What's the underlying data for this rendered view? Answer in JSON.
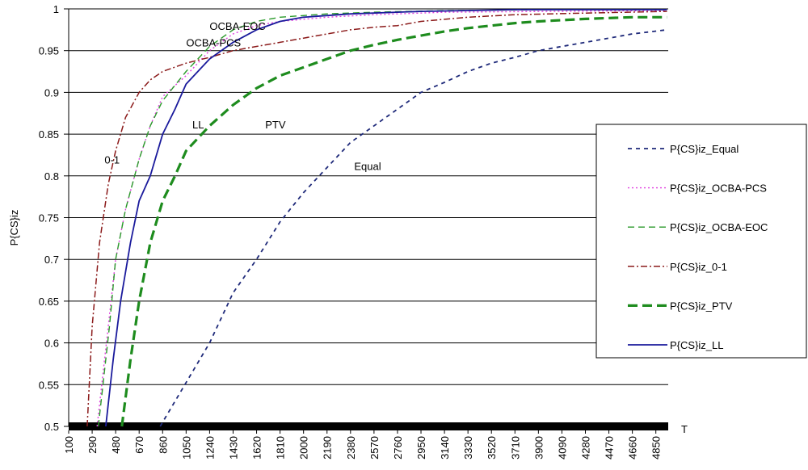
{
  "chart_data": {
    "type": "line",
    "title": "",
    "xlabel": "T",
    "ylabel": "P{CS}iz",
    "xlim": [
      100,
      4950
    ],
    "ylim": [
      0.5,
      1
    ],
    "x_ticks": [
      100,
      290,
      480,
      670,
      860,
      1050,
      1240,
      1430,
      1620,
      1810,
      2000,
      2190,
      2380,
      2570,
      2760,
      2950,
      3140,
      3330,
      3520,
      3710,
      3900,
      4090,
      4280,
      4470,
      4660,
      4850
    ],
    "y_ticks": [
      "0.5",
      "0.55",
      "0.6",
      "0.65",
      "0.7",
      "0.75",
      "0.8",
      "0.85",
      "0.9",
      "0.95",
      "1"
    ],
    "grid": "horizontal",
    "legend_position": "right",
    "series": [
      {
        "name": "P{CS}iz_Equal",
        "color": "#1f2a7a",
        "dash": "5,5",
        "width": 1.8,
        "points": [
          [
            840,
            0.5
          ],
          [
            1000,
            0.54
          ],
          [
            1240,
            0.6
          ],
          [
            1430,
            0.66
          ],
          [
            1620,
            0.7
          ],
          [
            1810,
            0.745
          ],
          [
            2000,
            0.78
          ],
          [
            2190,
            0.81
          ],
          [
            2380,
            0.84
          ],
          [
            2570,
            0.86
          ],
          [
            2760,
            0.88
          ],
          [
            2950,
            0.9
          ],
          [
            3140,
            0.912
          ],
          [
            3330,
            0.925
          ],
          [
            3520,
            0.935
          ],
          [
            3710,
            0.942
          ],
          [
            3900,
            0.95
          ],
          [
            4090,
            0.955
          ],
          [
            4280,
            0.96
          ],
          [
            4470,
            0.965
          ],
          [
            4660,
            0.97
          ],
          [
            4940,
            0.975
          ]
        ]
      },
      {
        "name": "P{CS}iz_OCBA-PCS",
        "color": "#e040e0",
        "dash": "2,3",
        "width": 1.4,
        "points": [
          [
            330,
            0.5
          ],
          [
            420,
            0.62
          ],
          [
            480,
            0.7
          ],
          [
            560,
            0.76
          ],
          [
            670,
            0.82
          ],
          [
            760,
            0.86
          ],
          [
            860,
            0.895
          ],
          [
            1050,
            0.92
          ],
          [
            1240,
            0.95
          ],
          [
            1430,
            0.97
          ],
          [
            1620,
            0.98
          ],
          [
            1810,
            0.985
          ],
          [
            2190,
            0.99
          ],
          [
            2570,
            0.993
          ],
          [
            3140,
            0.996
          ],
          [
            4000,
            0.997
          ],
          [
            4940,
            0.998
          ]
        ]
      },
      {
        "name": "P{CS}iz_OCBA-EOC",
        "color": "#2a9a2a",
        "dash": "8,5",
        "width": 1.4,
        "points": [
          [
            340,
            0.5
          ],
          [
            430,
            0.62
          ],
          [
            480,
            0.7
          ],
          [
            560,
            0.76
          ],
          [
            670,
            0.82
          ],
          [
            760,
            0.86
          ],
          [
            860,
            0.89
          ],
          [
            1050,
            0.925
          ],
          [
            1240,
            0.955
          ],
          [
            1430,
            0.975
          ],
          [
            1620,
            0.985
          ],
          [
            1810,
            0.99
          ],
          [
            2190,
            0.994
          ],
          [
            2570,
            0.996
          ],
          [
            3140,
            0.998
          ],
          [
            4000,
            0.999
          ],
          [
            4940,
            0.999
          ]
        ]
      },
      {
        "name": "P{CS}iz_0-1",
        "color": "#8b1a1a",
        "dash": "8,3,2,3",
        "width": 1.5,
        "points": [
          [
            250,
            0.5
          ],
          [
            290,
            0.62
          ],
          [
            350,
            0.72
          ],
          [
            420,
            0.79
          ],
          [
            480,
            0.83
          ],
          [
            560,
            0.87
          ],
          [
            670,
            0.9
          ],
          [
            760,
            0.915
          ],
          [
            860,
            0.925
          ],
          [
            1050,
            0.935
          ],
          [
            1240,
            0.942
          ],
          [
            1430,
            0.95
          ],
          [
            1620,
            0.955
          ],
          [
            1810,
            0.96
          ],
          [
            2000,
            0.965
          ],
          [
            2190,
            0.97
          ],
          [
            2380,
            0.975
          ],
          [
            2570,
            0.978
          ],
          [
            2760,
            0.98
          ],
          [
            2950,
            0.985
          ],
          [
            3330,
            0.99
          ],
          [
            3710,
            0.993
          ],
          [
            4280,
            0.995
          ],
          [
            4940,
            0.997
          ]
        ]
      },
      {
        "name": "P{CS}iz_PTV",
        "color": "#1e8c1e",
        "dash": "12,6",
        "width": 3.2,
        "points": [
          [
            530,
            0.5
          ],
          [
            600,
            0.58
          ],
          [
            670,
            0.65
          ],
          [
            760,
            0.72
          ],
          [
            860,
            0.77
          ],
          [
            960,
            0.8
          ],
          [
            1050,
            0.83
          ],
          [
            1240,
            0.86
          ],
          [
            1430,
            0.885
          ],
          [
            1620,
            0.905
          ],
          [
            1810,
            0.92
          ],
          [
            2000,
            0.93
          ],
          [
            2190,
            0.94
          ],
          [
            2380,
            0.95
          ],
          [
            2570,
            0.957
          ],
          [
            2760,
            0.963
          ],
          [
            2950,
            0.968
          ],
          [
            3140,
            0.973
          ],
          [
            3330,
            0.977
          ],
          [
            3520,
            0.98
          ],
          [
            3710,
            0.983
          ],
          [
            3900,
            0.985
          ],
          [
            4280,
            0.988
          ],
          [
            4660,
            0.99
          ],
          [
            4940,
            0.99
          ]
        ]
      },
      {
        "name": "P{CS}iz_LL",
        "color": "#1a1a9c",
        "dash": "",
        "width": 1.8,
        "points": [
          [
            400,
            0.5
          ],
          [
            460,
            0.58
          ],
          [
            520,
            0.65
          ],
          [
            600,
            0.72
          ],
          [
            670,
            0.77
          ],
          [
            760,
            0.8
          ],
          [
            860,
            0.85
          ],
          [
            960,
            0.88
          ],
          [
            1050,
            0.91
          ],
          [
            1240,
            0.94
          ],
          [
            1430,
            0.96
          ],
          [
            1620,
            0.975
          ],
          [
            1810,
            0.985
          ],
          [
            2000,
            0.99
          ],
          [
            2380,
            0.994
          ],
          [
            2950,
            0.997
          ],
          [
            3710,
            0.999
          ],
          [
            4940,
            0.999
          ]
        ]
      }
    ],
    "annotations": [
      {
        "text": "OCBA-EOC",
        "x": 1240,
        "y": 0.975
      },
      {
        "text": "OCBA-PCS",
        "x": 1050,
        "y": 0.955
      },
      {
        "text": "LL",
        "x": 1100,
        "y": 0.857
      },
      {
        "text": "PTV",
        "x": 1690,
        "y": 0.857
      },
      {
        "text": "0-1",
        "x": 390,
        "y": 0.815
      },
      {
        "text": "Equal",
        "x": 2410,
        "y": 0.807
      }
    ]
  }
}
